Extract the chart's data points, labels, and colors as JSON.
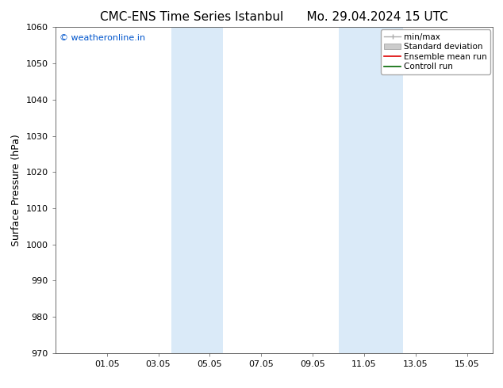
{
  "title_left": "CMC-ENS Time Series Istanbul",
  "title_right": "Mo. 29.04.2024 15 UTC",
  "ylabel": "Surface Pressure (hPa)",
  "ylim": [
    970,
    1060
  ],
  "yticks": [
    970,
    980,
    990,
    1000,
    1010,
    1020,
    1030,
    1040,
    1050,
    1060
  ],
  "xtick_labels": [
    "01.05",
    "03.05",
    "05.05",
    "07.05",
    "09.05",
    "11.05",
    "13.05",
    "15.05"
  ],
  "xtick_positions": [
    2,
    4,
    6,
    8,
    10,
    12,
    14,
    16
  ],
  "xlim": [
    0.0,
    17.0
  ],
  "shaded_regions": [
    {
      "x_start": 4.5,
      "x_end": 6.5
    },
    {
      "x_start": 11.0,
      "x_end": 13.5
    }
  ],
  "shaded_color": "#daeaf8",
  "watermark": "© weatheronline.in",
  "watermark_color": "#0055cc",
  "background_color": "#ffffff",
  "legend_labels": [
    "min/max",
    "Standard deviation",
    "Ensemble mean run",
    "Controll run"
  ],
  "legend_colors_line": [
    "#aaaaaa",
    "#bbbbbb",
    "#dd0000",
    "#006600"
  ],
  "title_fontsize": 11,
  "ylabel_fontsize": 9,
  "tick_fontsize": 8,
  "legend_fontsize": 7.5
}
